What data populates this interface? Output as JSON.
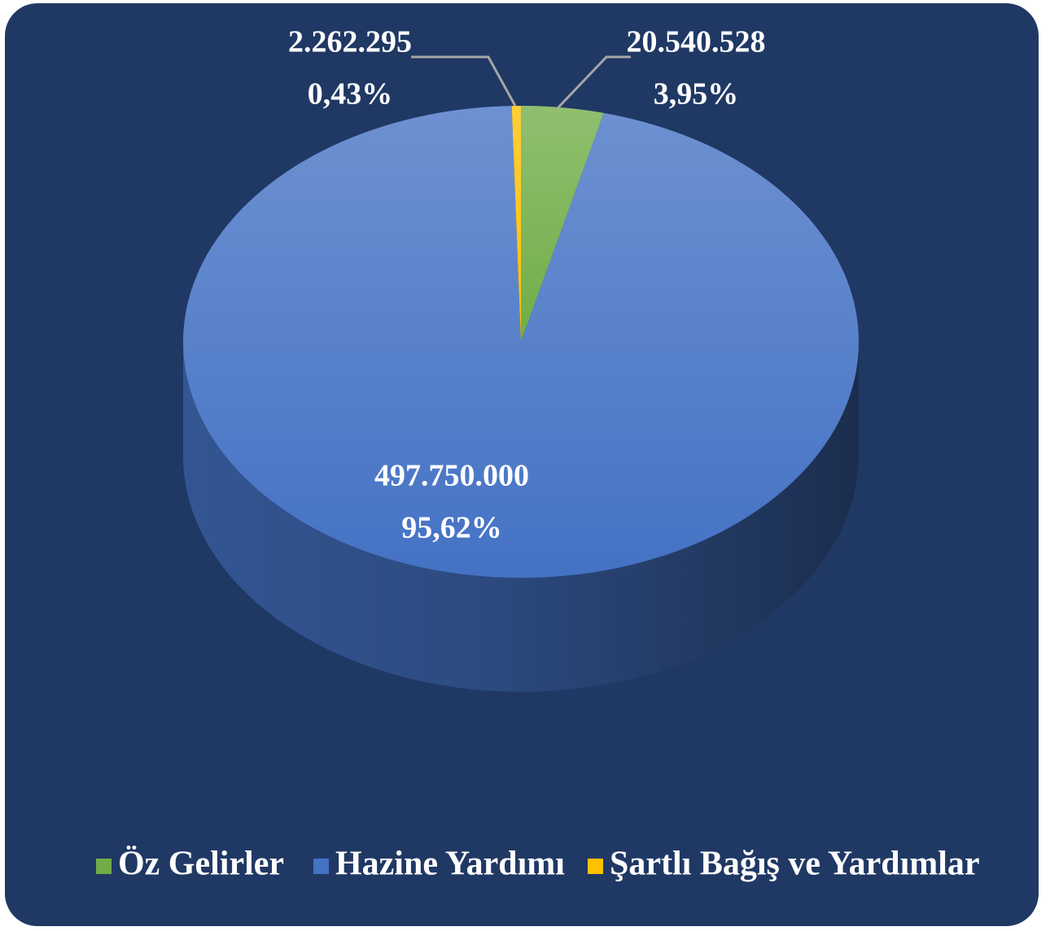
{
  "chart_data": {
    "type": "pie",
    "categories": [
      "Öz Gelirler",
      "Hazine Yardımı",
      "Şartlı Bağış ve Yardımlar"
    ],
    "values": [
      20540528,
      497750000,
      2262295
    ],
    "value_labels": [
      "20.540.528",
      "497.750.000",
      "2.262.295"
    ],
    "percent_labels": [
      "3,95%",
      "95,62%",
      "0,43%"
    ],
    "colors": [
      "#70ad47",
      "#4472c4",
      "#ffc000"
    ],
    "legend": "bottom"
  }
}
